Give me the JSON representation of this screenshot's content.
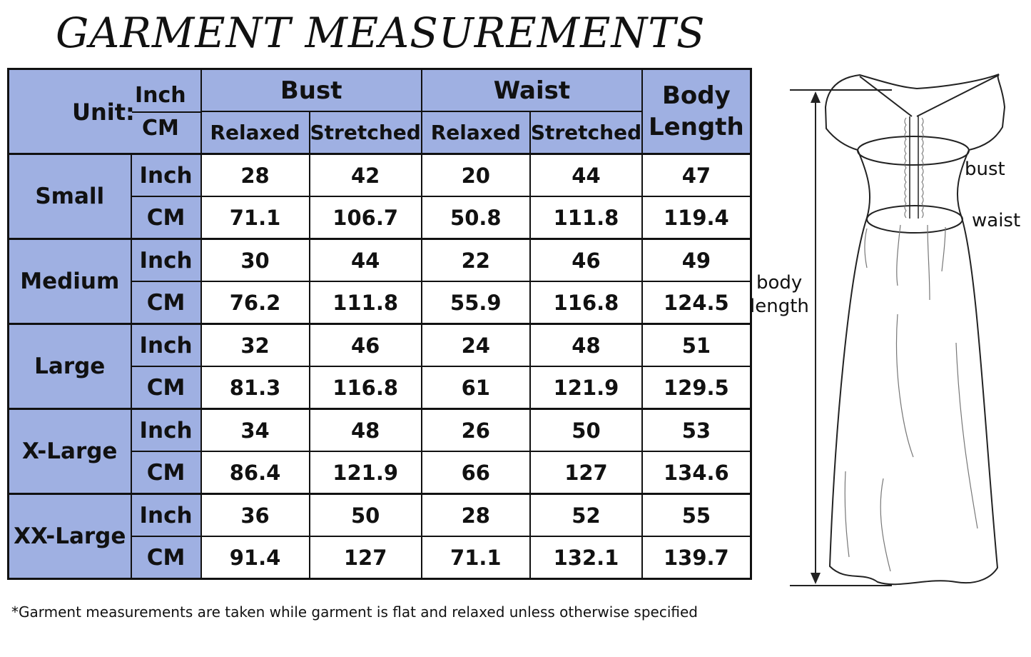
{
  "title": "GARMENT MEASUREMENTS",
  "header": {
    "unit_label": "Unit:",
    "unit_inch": "Inch",
    "unit_cm": "CM",
    "groups": [
      "Bust",
      "Waist",
      "Body Length"
    ],
    "subcolumns": [
      "Relaxed",
      "Stretched",
      "Relaxed",
      "Stretched"
    ]
  },
  "sizes": [
    {
      "name": "Small",
      "inch": [
        "28",
        "42",
        "20",
        "44",
        "47"
      ],
      "cm": [
        "71.1",
        "106.7",
        "50.8",
        "111.8",
        "119.4"
      ]
    },
    {
      "name": "Medium",
      "inch": [
        "30",
        "44",
        "22",
        "46",
        "49"
      ],
      "cm": [
        "76.2",
        "111.8",
        "55.9",
        "116.8",
        "124.5"
      ]
    },
    {
      "name": "Large",
      "inch": [
        "32",
        "46",
        "24",
        "48",
        "51"
      ],
      "cm": [
        "81.3",
        "116.8",
        "61",
        "121.9",
        "129.5"
      ]
    },
    {
      "name": "X-Large",
      "inch": [
        "34",
        "48",
        "26",
        "50",
        "53"
      ],
      "cm": [
        "86.4",
        "121.9",
        "66",
        "127",
        "134.6"
      ]
    },
    {
      "name": "XX-Large",
      "inch": [
        "36",
        "50",
        "28",
        "52",
        "55"
      ],
      "cm": [
        "91.4",
        "127",
        "71.1",
        "132.1",
        "139.7"
      ]
    }
  ],
  "row_units": {
    "inch": "Inch",
    "cm": "CM"
  },
  "diagram": {
    "bust": "bust",
    "waist": "waist",
    "body_length_1": "body",
    "body_length_2": "length"
  },
  "footnote": "*Garment measurements are taken while garment is flat and relaxed unless otherwise specified",
  "colors": {
    "header_blue": "#9fb0e2",
    "border": "#111111"
  }
}
